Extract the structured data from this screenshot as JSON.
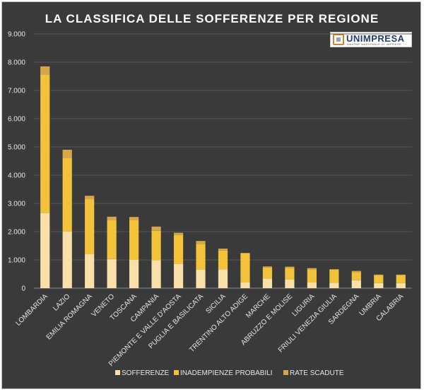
{
  "chart_data": {
    "type": "bar",
    "stacked": true,
    "title": "LA CLASSIFICA DELLE SOFFERENZE PER REGIONE",
    "xlabel": "",
    "ylabel": "",
    "ylim": [
      0,
      9000
    ],
    "ytick_values": [
      0,
      1000,
      2000,
      3000,
      4000,
      5000,
      6000,
      7000,
      8000,
      9000
    ],
    "ytick_labels": [
      "0",
      "1.000",
      "2.000",
      "3.000",
      "4.000",
      "5.000",
      "6.000",
      "7.000",
      "8.000",
      "9.000"
    ],
    "grid": true,
    "legend_position": "bottom",
    "categories": [
      "LOMBARDIA",
      "LAZIO",
      "EMILIA ROMAGNA",
      "VENETO",
      "TOSCANA",
      "CAMPANIA",
      "PIEMONTE E VALLE D'AOSTA",
      "PUGLIA E BASILICATA",
      "SICILIA",
      "TRENTINO ALTO ADIGE",
      "MARCHE",
      "ABRUZZO E MOLISE",
      "LIGURIA",
      "FRIULI VENEZIA GIULIA",
      "SARDEGNA",
      "UMBRIA",
      "CALABRIA"
    ],
    "series": [
      {
        "name": "SOFFERENZE",
        "color": "#f9dfa8",
        "values": [
          2650,
          2000,
          1200,
          1030,
          1000,
          990,
          860,
          650,
          670,
          210,
          340,
          300,
          210,
          190,
          280,
          180,
          180
        ]
      },
      {
        "name": "INADEMPIENZE PROBABILI",
        "color": "#f2c23a",
        "values": [
          4900,
          2600,
          1950,
          1370,
          1420,
          1040,
          1020,
          910,
          660,
          1020,
          390,
          420,
          450,
          460,
          290,
          270,
          270
        ]
      },
      {
        "name": "RATE SCADUTE",
        "color": "#d4a84a",
        "values": [
          300,
          300,
          120,
          130,
          100,
          150,
          80,
          110,
          70,
          20,
          40,
          40,
          50,
          20,
          40,
          30,
          30
        ]
      }
    ]
  },
  "logo": {
    "name": "UNIMPRESA",
    "tagline": "UNIONE NAZIONALE DI IMPRESE"
  }
}
